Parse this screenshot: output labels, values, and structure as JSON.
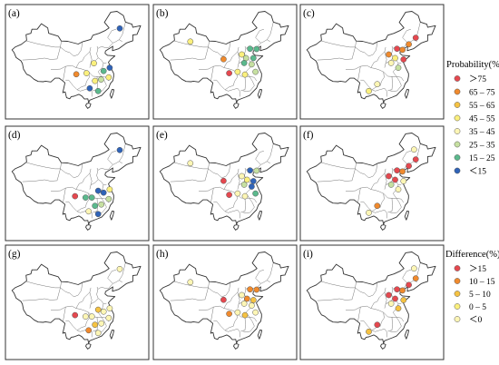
{
  "panels": [
    {
      "label": "(a)",
      "stations": [
        {
          "lon": 124.8,
          "lat": 47.3,
          "color": "#2f63b8"
        },
        {
          "lon": 104.1,
          "lat": 30.6,
          "color": "#f08a2d"
        },
        {
          "lon": 112.5,
          "lat": 34.6,
          "color": "#fbf07d"
        },
        {
          "lon": 117.1,
          "lat": 31.8,
          "color": "#5bb98d"
        },
        {
          "lon": 120.0,
          "lat": 33.0,
          "color": "#2f63b8"
        },
        {
          "lon": 113.0,
          "lat": 28.2,
          "color": "#fbf07d"
        },
        {
          "lon": 115.9,
          "lat": 28.7,
          "color": "#c6e0a1"
        },
        {
          "lon": 109.0,
          "lat": 31.0,
          "color": "#fbf07d"
        },
        {
          "lon": 119.5,
          "lat": 29.5,
          "color": "#fbf07d"
        },
        {
          "lon": 110.5,
          "lat": 25.5,
          "color": "#2f63b8"
        },
        {
          "lon": 114.5,
          "lat": 24.5,
          "color": "#5bb98d"
        }
      ]
    },
    {
      "label": "(b)",
      "stations": [
        {
          "lon": 88.0,
          "lat": 42.5,
          "color": "#fbf07d"
        },
        {
          "lon": 103.8,
          "lat": 36.1,
          "color": "#f08a2d"
        },
        {
          "lon": 116.4,
          "lat": 39.9,
          "color": "#5bb98d"
        },
        {
          "lon": 119.5,
          "lat": 39.8,
          "color": "#5bb98d"
        },
        {
          "lon": 112.5,
          "lat": 37.8,
          "color": "#fbf07d"
        },
        {
          "lon": 114.5,
          "lat": 36.5,
          "color": "#c6e0a1"
        },
        {
          "lon": 118.0,
          "lat": 36.5,
          "color": "#5bb98d"
        },
        {
          "lon": 113.6,
          "lat": 34.7,
          "color": "#5bb98d"
        },
        {
          "lon": 117.2,
          "lat": 34.2,
          "color": "#c6e0a1"
        },
        {
          "lon": 106.5,
          "lat": 31.0,
          "color": "#e5484f"
        },
        {
          "lon": 110.5,
          "lat": 31.5,
          "color": "#fbf07d"
        },
        {
          "lon": 119.0,
          "lat": 31.5,
          "color": "#c6e0a1"
        },
        {
          "lon": 114.0,
          "lat": 30.5,
          "color": "#fbf07d"
        }
      ]
    },
    {
      "label": "(c)",
      "stations": [
        {
          "lon": 125.3,
          "lat": 43.9,
          "color": "#e5484f"
        },
        {
          "lon": 122.0,
          "lat": 41.5,
          "color": "#f08a2d"
        },
        {
          "lon": 116.4,
          "lat": 39.9,
          "color": "#e5484f"
        },
        {
          "lon": 119.0,
          "lat": 39.5,
          "color": "#f08a2d"
        },
        {
          "lon": 112.5,
          "lat": 37.8,
          "color": "#f08a2d"
        },
        {
          "lon": 115.5,
          "lat": 36.5,
          "color": "#fbf07d"
        },
        {
          "lon": 119.5,
          "lat": 36.0,
          "color": "#e5484f"
        },
        {
          "lon": 113.6,
          "lat": 34.7,
          "color": "#fdf6b5"
        },
        {
          "lon": 117.0,
          "lat": 33.0,
          "color": "#c6e0a1"
        },
        {
          "lon": 107.0,
          "lat": 27.0,
          "color": "#fdf6b5"
        },
        {
          "lon": 103.0,
          "lat": 24.5,
          "color": "#fbf07d"
        }
      ]
    },
    {
      "label": "(d)",
      "stations": [
        {
          "lon": 124.8,
          "lat": 47.3,
          "color": "#2f63b8"
        },
        {
          "lon": 103.5,
          "lat": 30.5,
          "color": "#e5484f"
        },
        {
          "lon": 108.5,
          "lat": 30.0,
          "color": "#5bb98d"
        },
        {
          "lon": 111.5,
          "lat": 30.0,
          "color": "#5bb98d"
        },
        {
          "lon": 114.5,
          "lat": 32.5,
          "color": "#2f63b8"
        },
        {
          "lon": 117.1,
          "lat": 31.8,
          "color": "#2f63b8"
        },
        {
          "lon": 120.0,
          "lat": 33.0,
          "color": "#fbf07d"
        },
        {
          "lon": 119.5,
          "lat": 29.5,
          "color": "#c6e0a1"
        },
        {
          "lon": 116.0,
          "lat": 27.5,
          "color": "#c6e0a1"
        },
        {
          "lon": 113.0,
          "lat": 27.0,
          "color": "#5bb98d"
        },
        {
          "lon": 110.0,
          "lat": 25.0,
          "color": "#fdf6b5"
        },
        {
          "lon": 114.5,
          "lat": 24.0,
          "color": "#2f63b8"
        }
      ]
    },
    {
      "label": "(e)",
      "stations": [
        {
          "lon": 88.0,
          "lat": 42.5,
          "color": "#fdf6b5"
        },
        {
          "lon": 103.8,
          "lat": 36.1,
          "color": "#e5484f"
        },
        {
          "lon": 116.4,
          "lat": 39.9,
          "color": "#2f63b8"
        },
        {
          "lon": 119.5,
          "lat": 39.8,
          "color": "#c6e0a1"
        },
        {
          "lon": 112.5,
          "lat": 37.8,
          "color": "#fdf6b5"
        },
        {
          "lon": 115.0,
          "lat": 36.5,
          "color": "#fbf07d"
        },
        {
          "lon": 118.0,
          "lat": 36.0,
          "color": "#2f63b8"
        },
        {
          "lon": 113.6,
          "lat": 34.7,
          "color": "#c6e0a1"
        },
        {
          "lon": 117.2,
          "lat": 34.0,
          "color": "#2f63b8"
        },
        {
          "lon": 106.5,
          "lat": 31.0,
          "color": "#e5484f"
        },
        {
          "lon": 110.5,
          "lat": 31.5,
          "color": "#fdf6b5"
        },
        {
          "lon": 119.0,
          "lat": 31.5,
          "color": "#5bb98d"
        },
        {
          "lon": 114.0,
          "lat": 30.5,
          "color": "#fdf6b5"
        }
      ]
    },
    {
      "label": "(f)",
      "stations": [
        {
          "lon": 125.3,
          "lat": 43.9,
          "color": "#e5484f"
        },
        {
          "lon": 124.5,
          "lat": 47.5,
          "color": "#fdf6b5"
        },
        {
          "lon": 122.0,
          "lat": 41.5,
          "color": "#e5484f"
        },
        {
          "lon": 116.4,
          "lat": 39.9,
          "color": "#e5484f"
        },
        {
          "lon": 119.0,
          "lat": 39.5,
          "color": "#f08a2d"
        },
        {
          "lon": 112.5,
          "lat": 37.8,
          "color": "#e5484f"
        },
        {
          "lon": 115.5,
          "lat": 36.5,
          "color": "#e5484f"
        },
        {
          "lon": 119.5,
          "lat": 36.0,
          "color": "#fdf6b5"
        },
        {
          "lon": 113.6,
          "lat": 34.7,
          "color": "#c6e0a1"
        },
        {
          "lon": 117.0,
          "lat": 33.0,
          "color": "#fdf6b5"
        },
        {
          "lon": 107.0,
          "lat": 27.0,
          "color": "#f08a2d"
        },
        {
          "lon": 103.0,
          "lat": 24.5,
          "color": "#fdf6b5"
        }
      ]
    },
    {
      "label": "(g)",
      "stations": [
        {
          "lon": 124.8,
          "lat": 47.3,
          "color": "#fdf6b5"
        },
        {
          "lon": 103.5,
          "lat": 30.5,
          "color": "#e5484f"
        },
        {
          "lon": 108.5,
          "lat": 30.0,
          "color": "#fdf6b5"
        },
        {
          "lon": 111.5,
          "lat": 30.0,
          "color": "#fdf6b5"
        },
        {
          "lon": 114.5,
          "lat": 32.5,
          "color": "#f5c242"
        },
        {
          "lon": 117.1,
          "lat": 31.8,
          "color": "#fdf6b5"
        },
        {
          "lon": 120.0,
          "lat": 33.0,
          "color": "#fdf6b5"
        },
        {
          "lon": 119.5,
          "lat": 29.5,
          "color": "#fdf6b5"
        },
        {
          "lon": 116.0,
          "lat": 27.5,
          "color": "#fdf6b5"
        },
        {
          "lon": 113.0,
          "lat": 27.0,
          "color": "#f5c242"
        },
        {
          "lon": 110.0,
          "lat": 25.0,
          "color": "#f08a2d"
        },
        {
          "lon": 114.5,
          "lat": 24.0,
          "color": "#fdf6b5"
        }
      ]
    },
    {
      "label": "(h)",
      "stations": [
        {
          "lon": 88.0,
          "lat": 42.5,
          "color": "#fdf6b5"
        },
        {
          "lon": 103.8,
          "lat": 36.1,
          "color": "#e5484f"
        },
        {
          "lon": 116.4,
          "lat": 39.9,
          "color": "#f08a2d"
        },
        {
          "lon": 119.5,
          "lat": 39.8,
          "color": "#f08a2d"
        },
        {
          "lon": 112.5,
          "lat": 37.8,
          "color": "#fdf6b5"
        },
        {
          "lon": 115.0,
          "lat": 36.5,
          "color": "#f08a2d"
        },
        {
          "lon": 118.0,
          "lat": 36.0,
          "color": "#f5c242"
        },
        {
          "lon": 113.6,
          "lat": 34.7,
          "color": "#fdf6b5"
        },
        {
          "lon": 117.2,
          "lat": 34.0,
          "color": "#fdf6b5"
        },
        {
          "lon": 106.5,
          "lat": 31.0,
          "color": "#f08a2d"
        },
        {
          "lon": 110.5,
          "lat": 31.5,
          "color": "#fdf6b5"
        },
        {
          "lon": 119.0,
          "lat": 31.5,
          "color": "#fdf6b5"
        },
        {
          "lon": 114.0,
          "lat": 30.5,
          "color": "#f5c242"
        }
      ]
    },
    {
      "label": "(i)",
      "stations": [
        {
          "lon": 125.3,
          "lat": 43.9,
          "color": "#f08a2d"
        },
        {
          "lon": 124.5,
          "lat": 47.5,
          "color": "#fdf6b5"
        },
        {
          "lon": 122.0,
          "lat": 41.5,
          "color": "#e5484f"
        },
        {
          "lon": 116.4,
          "lat": 39.9,
          "color": "#e5484f"
        },
        {
          "lon": 119.0,
          "lat": 39.5,
          "color": "#f08a2d"
        },
        {
          "lon": 112.5,
          "lat": 37.8,
          "color": "#e5484f"
        },
        {
          "lon": 115.5,
          "lat": 36.5,
          "color": "#e5484f"
        },
        {
          "lon": 119.5,
          "lat": 36.0,
          "color": "#f5c242"
        },
        {
          "lon": 113.6,
          "lat": 34.7,
          "color": "#fdf6b5"
        },
        {
          "lon": 117.0,
          "lat": 33.0,
          "color": "#f5c242"
        },
        {
          "lon": 107.0,
          "lat": 27.0,
          "color": "#e5484f"
        },
        {
          "lon": 103.0,
          "lat": 24.5,
          "color": "#f5c242"
        }
      ]
    }
  ],
  "legends": [
    {
      "title": "Probability(%)",
      "items": [
        {
          "label": "＞75",
          "color": "#e5484f"
        },
        {
          "label": "65 – 75",
          "color": "#f08a2d"
        },
        {
          "label": "55 – 65",
          "color": "#f5c242"
        },
        {
          "label": "45 – 55",
          "color": "#fbf07d"
        },
        {
          "label": "35 – 45",
          "color": "#fdf6b5"
        },
        {
          "label": "25 – 35",
          "color": "#c6e0a1"
        },
        {
          "label": "15 – 25",
          "color": "#5bb98d"
        },
        {
          "label": "＜15",
          "color": "#2f63b8"
        }
      ]
    },
    {
      "title": "Difference(%)",
      "items": [
        {
          "label": "＞15",
          "color": "#e5484f"
        },
        {
          "label": "10 – 15",
          "color": "#f08a2d"
        },
        {
          "label": "5 – 10",
          "color": "#f5c242"
        },
        {
          "label": "0 – 5",
          "color": "#fbf07d"
        },
        {
          "label": "＜0",
          "color": "#fdf6b5"
        }
      ]
    }
  ]
}
